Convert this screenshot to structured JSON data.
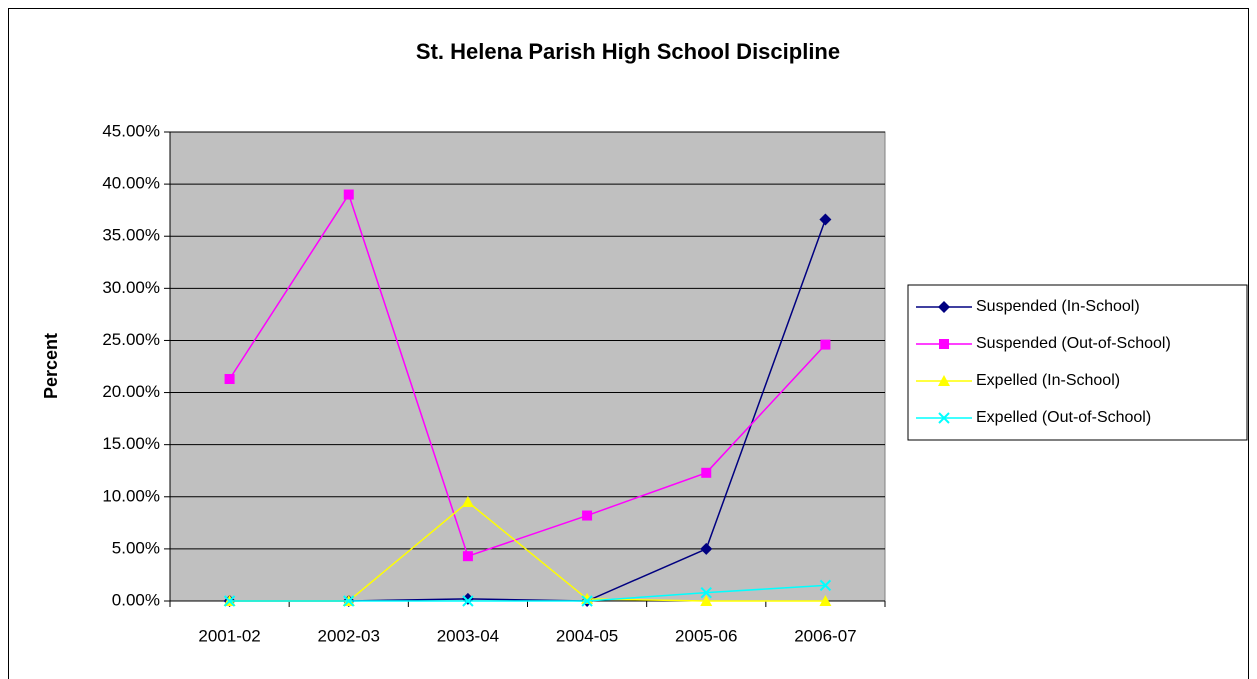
{
  "chart_data": {
    "type": "line",
    "title": "St. Helena Parish High School Discipline",
    "y_label": "Percent",
    "categories": [
      "2001-02",
      "2002-03",
      "2003-04",
      "2004-05",
      "2005-06",
      "2006-07"
    ],
    "series": [
      {
        "name": "Suspended (In-School)",
        "color": "#000080",
        "marker": "diamond",
        "values": [
          0,
          0,
          0.2,
          0,
          5.0,
          36.6
        ]
      },
      {
        "name": "Suspended (Out-of-School)",
        "color": "#ff00ff",
        "marker": "square",
        "values": [
          21.3,
          39.0,
          4.3,
          8.2,
          12.3,
          24.6
        ]
      },
      {
        "name": "Expelled (In-School)",
        "color": "#ffff00",
        "marker": "triangle",
        "values": [
          0,
          0,
          9.5,
          0.2,
          0,
          0
        ]
      },
      {
        "name": "Expelled (Out-of-School)",
        "color": "#00ffff",
        "marker": "x",
        "values": [
          0,
          0,
          0,
          0,
          0.8,
          1.5
        ]
      }
    ],
    "ylim": [
      0,
      45
    ],
    "yticks": [
      {
        "value": 0,
        "label": "0.00%"
      },
      {
        "value": 5,
        "label": "5.00%"
      },
      {
        "value": 10,
        "label": "10.00%"
      },
      {
        "value": 15,
        "label": "15.00%"
      },
      {
        "value": 20,
        "label": "20.00%"
      },
      {
        "value": 25,
        "label": "25.00%"
      },
      {
        "value": 30,
        "label": "30.00%"
      },
      {
        "value": 35,
        "label": "35.00%"
      },
      {
        "value": 40,
        "label": "40.00%"
      },
      {
        "value": 45,
        "label": "45.00%"
      }
    ],
    "grid": true,
    "plot_background": "#c0c0c0",
    "legend": "right"
  }
}
